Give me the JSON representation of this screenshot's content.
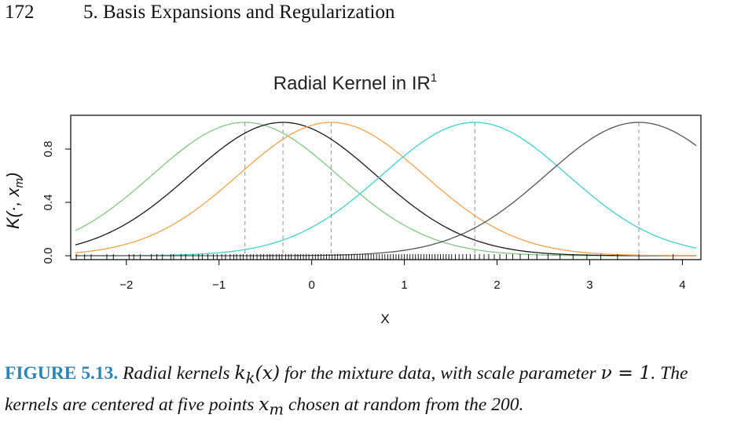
{
  "header": {
    "page_number": "172",
    "chapter_title": "5. Basis Expansions and Regularization"
  },
  "chart_data": {
    "type": "line",
    "title": "Radial Kernel in IR",
    "title_superscript": "1",
    "xlabel": "X",
    "ylabel": "K(·, x_m)",
    "xlim": [
      -2.6,
      4.2
    ],
    "ylim": [
      0,
      1
    ],
    "x_ticks": [
      "-2",
      "-1",
      "0",
      "1",
      "2",
      "3",
      "4"
    ],
    "y_ticks": [
      "0.0",
      "0.4",
      "0.8"
    ],
    "grid": false,
    "scale_parameter": 1,
    "centers": [
      -0.72,
      -0.31,
      0.21,
      1.76,
      3.53
    ],
    "series": [
      {
        "center": -0.72,
        "color": "#7fc97f"
      },
      {
        "center": -0.31,
        "color": "#1a1a1a"
      },
      {
        "center": 0.21,
        "color": "#f6a14a"
      },
      {
        "center": 1.76,
        "color": "#3fd0d4"
      },
      {
        "center": 3.53,
        "color": "#555555"
      }
    ],
    "rug_x": [
      -2.54,
      -2.45,
      -2.38,
      -2.21,
      -2.14,
      -1.97,
      -1.92,
      -1.85,
      -1.73,
      -1.67,
      -1.61,
      -1.52,
      -1.49,
      -1.41,
      -1.36,
      -1.28,
      -1.22,
      -1.18,
      -1.12,
      -1.06,
      -1.02,
      -0.97,
      -0.93,
      -0.88,
      -0.84,
      -0.81,
      -0.77,
      -0.74,
      -0.7,
      -0.66,
      -0.63,
      -0.59,
      -0.55,
      -0.52,
      -0.48,
      -0.45,
      -0.42,
      -0.38,
      -0.35,
      -0.32,
      -0.28,
      -0.25,
      -0.22,
      -0.18,
      -0.15,
      -0.12,
      -0.09,
      -0.06,
      -0.03,
      0.01,
      0.04,
      0.07,
      0.1,
      0.13,
      0.16,
      0.19,
      0.22,
      0.25,
      0.28,
      0.31,
      0.34,
      0.37,
      0.4,
      0.43,
      0.46,
      0.49,
      0.52,
      0.55,
      0.58,
      0.61,
      0.64,
      0.67,
      0.7,
      0.73,
      0.76,
      0.79,
      0.82,
      0.85,
      0.88,
      0.91,
      0.94,
      0.97,
      1.0,
      1.03,
      1.06,
      1.09,
      1.12,
      1.15,
      1.18,
      1.21,
      1.24,
      1.27,
      1.3,
      1.33,
      1.36,
      1.39,
      1.42,
      1.45,
      1.48,
      1.51,
      1.55,
      1.59,
      1.63,
      1.67,
      1.71,
      1.76,
      1.81,
      1.86,
      1.91,
      1.97,
      2.03,
      2.1,
      2.17,
      2.25,
      2.34,
      2.43,
      2.55,
      2.68,
      2.82,
      2.97,
      3.12,
      3.3,
      3.53,
      3.9
    ]
  },
  "caption": {
    "figure_label": "FIGURE 5.13.",
    "text_1": " Radial kernels ",
    "math_1": "k",
    "math_1_sub": "k",
    "math_1_arg": "(x)",
    "text_2": " for the mixture data, with scale parameter ",
    "math_2": "ν = 1",
    "text_3": ". The kernels are centered at five points ",
    "math_3": "x",
    "math_3_sub": "m",
    "text_4": " chosen at random from the 200."
  }
}
